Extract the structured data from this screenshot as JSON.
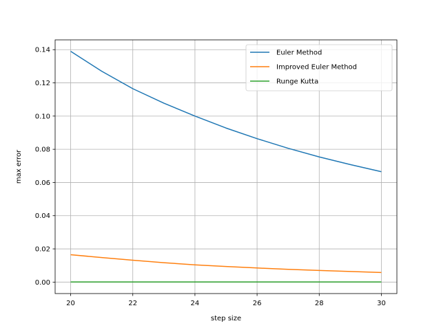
{
  "chart_data": {
    "type": "line",
    "title": "",
    "xlabel": "step size",
    "ylabel": "max error",
    "x": [
      20,
      21,
      22,
      23,
      24,
      25,
      26,
      27,
      28,
      29,
      30
    ],
    "xlim": [
      19.5,
      30.5
    ],
    "ylim": [
      -0.0069,
      0.1459
    ],
    "xticks": [
      20,
      22,
      24,
      26,
      28,
      30
    ],
    "yticks": [
      0.0,
      0.02,
      0.04,
      0.06,
      0.08,
      0.1,
      0.12,
      0.14
    ],
    "xtick_labels": [
      "20",
      "22",
      "24",
      "26",
      "28",
      "30"
    ],
    "ytick_labels": [
      "0.00",
      "0.02",
      "0.04",
      "0.06",
      "0.08",
      "0.10",
      "0.12",
      "0.14"
    ],
    "grid": true,
    "legend_position": "top-right",
    "series": [
      {
        "name": "Euler Method",
        "color": "#1f77b4",
        "values": [
          0.139,
          0.127,
          0.1165,
          0.1078,
          0.1,
          0.0928,
          0.0864,
          0.0806,
          0.0754,
          0.0708,
          0.0665
        ]
      },
      {
        "name": "Improved Euler Method",
        "color": "#ff7f0e",
        "values": [
          0.0165,
          0.0148,
          0.0132,
          0.0117,
          0.0104,
          0.0094,
          0.0085,
          0.0077,
          0.007,
          0.0064,
          0.0058
        ]
      },
      {
        "name": "Runge Kutta",
        "color": "#2ca02c",
        "values": [
          0.0001,
          0.0001,
          0.0001,
          0.0001,
          0.0001,
          0.0001,
          0.0001,
          0.0001,
          0.0001,
          0.0001,
          0.0001
        ]
      }
    ]
  }
}
